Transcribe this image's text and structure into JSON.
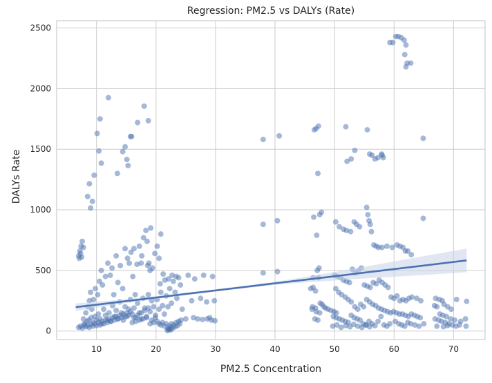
{
  "chart_data": {
    "type": "scatter",
    "title": "Regression: PM2.5 vs DALYs (Rate)",
    "xlabel": "PM2.5 Concentration",
    "ylabel": "DALYs Rate",
    "xlim": [
      3.3,
      75.3
    ],
    "ylim": [
      -70,
      2560
    ],
    "xticks": [
      10,
      20,
      30,
      40,
      50,
      60,
      70
    ],
    "yticks": [
      0,
      500,
      1000,
      1500,
      2000,
      2500
    ],
    "grid": true,
    "colors": {
      "points": "#4c72b0",
      "line": "#4c72b0",
      "band": "#c6d3e8",
      "grid": "#cccccc",
      "frame": "#cccccc"
    },
    "regression": {
      "x": [
        6.5,
        10,
        15,
        20,
        25,
        30,
        35,
        40,
        45,
        50,
        55,
        60,
        65,
        72.2
      ],
      "y": [
        197,
        217,
        247,
        276,
        306,
        335,
        364,
        394,
        423,
        452,
        482,
        511,
        540,
        583
      ],
      "ci_upper": [
        228,
        240,
        262,
        288,
        316,
        345,
        375,
        407,
        445,
        487,
        530,
        574,
        618,
        680
      ],
      "ci_lower": [
        166,
        194,
        232,
        264,
        296,
        325,
        353,
        381,
        401,
        417,
        434,
        448,
        462,
        486
      ]
    },
    "points": [
      [
        7.0,
        620
      ],
      [
        7.2,
        660
      ],
      [
        7.4,
        700
      ],
      [
        7.6,
        740
      ],
      [
        7.3,
        640
      ],
      [
        7.5,
        610
      ],
      [
        7.1,
        600
      ],
      [
        7.8,
        690
      ],
      [
        8.5,
        1110
      ],
      [
        8.8,
        1215
      ],
      [
        9.0,
        1015
      ],
      [
        9.3,
        1070
      ],
      [
        9.6,
        1285
      ],
      [
        10.1,
        1630
      ],
      [
        10.4,
        1485
      ],
      [
        10.6,
        1750
      ],
      [
        10.8,
        1385
      ],
      [
        12.0,
        1925
      ],
      [
        13.5,
        1300
      ],
      [
        14.4,
        1480
      ],
      [
        14.8,
        1520
      ],
      [
        15.1,
        1415
      ],
      [
        15.3,
        1365
      ],
      [
        15.7,
        1605
      ],
      [
        15.9,
        1605
      ],
      [
        16.9,
        1720
      ],
      [
        18.0,
        1855
      ],
      [
        18.7,
        1735
      ],
      [
        7.8,
        100
      ],
      [
        8.2,
        150
      ],
      [
        8.5,
        200
      ],
      [
        8.8,
        250
      ],
      [
        9.0,
        320
      ],
      [
        9.2,
        180
      ],
      [
        9.5,
        260
      ],
      [
        9.8,
        350
      ],
      [
        10.2,
        300
      ],
      [
        10.5,
        410
      ],
      [
        10.8,
        500
      ],
      [
        11.0,
        380
      ],
      [
        11.5,
        450
      ],
      [
        11.9,
        560
      ],
      [
        12.3,
        460
      ],
      [
        12.6,
        520
      ],
      [
        12.9,
        300
      ],
      [
        13.3,
        620
      ],
      [
        13.6,
        400
      ],
      [
        14.0,
        540
      ],
      [
        14.4,
        350
      ],
      [
        14.8,
        680
      ],
      [
        15.2,
        600
      ],
      [
        15.5,
        560
      ],
      [
        15.8,
        650
      ],
      [
        16.1,
        450
      ],
      [
        16.5,
        300
      ],
      [
        16.8,
        550
      ],
      [
        17.2,
        700
      ],
      [
        17.6,
        620
      ],
      [
        17.9,
        770
      ],
      [
        18.3,
        830
      ],
      [
        18.5,
        740
      ],
      [
        18.8,
        560
      ],
      [
        19.1,
        850
      ],
      [
        19.4,
        520
      ],
      [
        19.8,
        640
      ],
      [
        20.2,
        700
      ],
      [
        20.5,
        600
      ],
      [
        20.8,
        800
      ],
      [
        21.2,
        470
      ],
      [
        18.6,
        540
      ],
      [
        19.0,
        500
      ],
      [
        17.5,
        560
      ],
      [
        16.3,
        680
      ],
      [
        8.0,
        60
      ],
      [
        8.4,
        80
      ],
      [
        8.7,
        90
      ],
      [
        9.1,
        110
      ],
      [
        9.4,
        70
      ],
      [
        9.7,
        120
      ],
      [
        10.0,
        90
      ],
      [
        10.3,
        140
      ],
      [
        10.6,
        100
      ],
      [
        10.9,
        60
      ],
      [
        11.2,
        180
      ],
      [
        11.5,
        130
      ],
      [
        11.8,
        90
      ],
      [
        12.1,
        150
      ],
      [
        12.4,
        80
      ],
      [
        12.7,
        210
      ],
      [
        13.0,
        120
      ],
      [
        13.3,
        170
      ],
      [
        13.6,
        100
      ],
      [
        13.9,
        240
      ],
      [
        14.2,
        150
      ],
      [
        14.5,
        90
      ],
      [
        14.8,
        200
      ],
      [
        15.1,
        120
      ],
      [
        15.4,
        180
      ],
      [
        15.7,
        260
      ],
      [
        16.0,
        140
      ],
      [
        16.3,
        190
      ],
      [
        16.6,
        110
      ],
      [
        16.9,
        230
      ],
      [
        17.2,
        150
      ],
      [
        17.5,
        100
      ],
      [
        17.8,
        270
      ],
      [
        18.1,
        190
      ],
      [
        18.4,
        120
      ],
      [
        18.7,
        300
      ],
      [
        19.0,
        160
      ],
      [
        19.3,
        250
      ],
      [
        19.6,
        200
      ],
      [
        19.9,
        130
      ],
      [
        20.2,
        260
      ],
      [
        20.5,
        180
      ],
      [
        20.8,
        320
      ],
      [
        21.1,
        210
      ],
      [
        21.4,
        140
      ],
      [
        21.7,
        290
      ],
      [
        22.0,
        200
      ],
      [
        22.3,
        350
      ],
      [
        22.6,
        230
      ],
      [
        22.9,
        410
      ],
      [
        23.2,
        320
      ],
      [
        23.5,
        270
      ],
      [
        23.8,
        440
      ],
      [
        24.1,
        380
      ],
      [
        24.4,
        180
      ],
      [
        22.1,
        430
      ],
      [
        22.7,
        460
      ],
      [
        23.4,
        450
      ],
      [
        21.5,
        420
      ],
      [
        20.7,
        390
      ],
      [
        7.0,
        30
      ],
      [
        7.3,
        40
      ],
      [
        7.6,
        25
      ],
      [
        7.9,
        50
      ],
      [
        8.2,
        35
      ],
      [
        8.5,
        45
      ],
      [
        8.8,
        30
      ],
      [
        9.1,
        55
      ],
      [
        9.4,
        40
      ],
      [
        9.7,
        60
      ],
      [
        10.0,
        45
      ],
      [
        10.3,
        70
      ],
      [
        10.6,
        50
      ],
      [
        10.9,
        80
      ],
      [
        11.2,
        60
      ],
      [
        11.5,
        90
      ],
      [
        11.8,
        70
      ],
      [
        12.1,
        100
      ],
      [
        12.4,
        80
      ],
      [
        12.7,
        110
      ],
      [
        13.0,
        90
      ],
      [
        13.3,
        120
      ],
      [
        13.6,
        100
      ],
      [
        13.9,
        130
      ],
      [
        14.2,
        110
      ],
      [
        14.5,
        140
      ],
      [
        14.8,
        120
      ],
      [
        15.1,
        150
      ],
      [
        15.4,
        130
      ],
      [
        15.7,
        160
      ],
      [
        16.0,
        70
      ],
      [
        16.3,
        110
      ],
      [
        16.6,
        80
      ],
      [
        16.9,
        130
      ],
      [
        17.2,
        90
      ],
      [
        17.5,
        150
      ],
      [
        17.8,
        100
      ],
      [
        18.1,
        170
      ],
      [
        18.4,
        110
      ],
      [
        18.7,
        190
      ],
      [
        19.0,
        60
      ],
      [
        19.3,
        90
      ],
      [
        19.6,
        70
      ],
      [
        19.9,
        110
      ],
      [
        20.2,
        80
      ],
      [
        20.5,
        60
      ],
      [
        20.8,
        50
      ],
      [
        21.1,
        70
      ],
      [
        21.4,
        40
      ],
      [
        21.7,
        60
      ],
      [
        22.0,
        20
      ],
      [
        22.2,
        40
      ],
      [
        22.4,
        30
      ],
      [
        22.6,
        60
      ],
      [
        22.8,
        25
      ],
      [
        23.0,
        50
      ],
      [
        23.2,
        35
      ],
      [
        23.4,
        70
      ],
      [
        23.6,
        45
      ],
      [
        23.8,
        80
      ],
      [
        24.0,
        60
      ],
      [
        24.2,
        90
      ],
      [
        22.1,
        10
      ],
      [
        22.3,
        15
      ],
      [
        21.9,
        5
      ],
      [
        22.5,
        10
      ],
      [
        25.4,
        460
      ],
      [
        26.0,
        250
      ],
      [
        26.5,
        430
      ],
      [
        27.0,
        100
      ],
      [
        27.5,
        270
      ],
      [
        28.0,
        460
      ],
      [
        28.5,
        240
      ],
      [
        29.0,
        110
      ],
      [
        29.5,
        450
      ],
      [
        29.8,
        250
      ],
      [
        25.0,
        100
      ],
      [
        26.3,
        110
      ],
      [
        27.8,
        95
      ],
      [
        28.6,
        100
      ],
      [
        29.3,
        90
      ],
      [
        29.9,
        85
      ],
      [
        38.0,
        1580
      ],
      [
        40.7,
        1610
      ],
      [
        38.0,
        880
      ],
      [
        40.4,
        910
      ],
      [
        38.0,
        480
      ],
      [
        40.4,
        490
      ],
      [
        46.6,
        1660
      ],
      [
        46.9,
        1670
      ],
      [
        47.3,
        1690
      ],
      [
        47.2,
        1300
      ],
      [
        47.5,
        960
      ],
      [
        47.8,
        980
      ],
      [
        46.5,
        940
      ],
      [
        47.0,
        790
      ],
      [
        47.4,
        520
      ],
      [
        47.1,
        500
      ],
      [
        47.3,
        440
      ],
      [
        46.4,
        360
      ],
      [
        46.8,
        330
      ],
      [
        47.6,
        230
      ],
      [
        46.2,
        180
      ],
      [
        46.9,
        160
      ],
      [
        47.5,
        150
      ],
      [
        46.7,
        100
      ],
      [
        47.2,
        90
      ],
      [
        46.4,
        440
      ],
      [
        50.2,
        900
      ],
      [
        50.8,
        860
      ],
      [
        51.5,
        840
      ],
      [
        52.0,
        830
      ],
      [
        52.7,
        820
      ],
      [
        53.3,
        900
      ],
      [
        53.7,
        880
      ],
      [
        54.2,
        860
      ],
      [
        51.9,
        1685
      ],
      [
        52.1,
        1400
      ],
      [
        52.8,
        1420
      ],
      [
        53.4,
        1490
      ],
      [
        55.5,
        1660
      ],
      [
        55.9,
        1460
      ],
      [
        56.3,
        1450
      ],
      [
        56.8,
        1420
      ],
      [
        57.3,
        1430
      ],
      [
        57.9,
        1460
      ],
      [
        58.0,
        1450
      ],
      [
        58.2,
        1430
      ],
      [
        59.3,
        2380
      ],
      [
        59.8,
        2380
      ],
      [
        60.3,
        2430
      ],
      [
        60.7,
        2430
      ],
      [
        61.2,
        2420
      ],
      [
        61.7,
        2400
      ],
      [
        62.0,
        2360
      ],
      [
        61.8,
        2280
      ],
      [
        62.2,
        2210
      ],
      [
        62.0,
        2180
      ],
      [
        62.8,
        2210
      ],
      [
        64.9,
        1590
      ],
      [
        64.9,
        930
      ],
      [
        58.0,
        690
      ],
      [
        58.8,
        700
      ],
      [
        59.7,
        690
      ],
      [
        60.5,
        710
      ],
      [
        61.0,
        700
      ],
      [
        61.5,
        690
      ],
      [
        61.9,
        660
      ],
      [
        62.3,
        660
      ],
      [
        62.9,
        630
      ],
      [
        55.4,
        1020
      ],
      [
        55.6,
        960
      ],
      [
        55.8,
        910
      ],
      [
        56.0,
        880
      ],
      [
        56.2,
        820
      ],
      [
        56.6,
        710
      ],
      [
        57.0,
        700
      ],
      [
        57.4,
        690
      ],
      [
        50.0,
        460
      ],
      [
        50.5,
        450
      ],
      [
        51.0,
        440
      ],
      [
        51.5,
        420
      ],
      [
        52.0,
        410
      ],
      [
        52.5,
        400
      ],
      [
        53.0,
        510
      ],
      [
        53.5,
        480
      ],
      [
        54.0,
        500
      ],
      [
        54.5,
        520
      ],
      [
        55.0,
        380
      ],
      [
        55.5,
        370
      ],
      [
        56.0,
        360
      ],
      [
        56.5,
        400
      ],
      [
        57.0,
        390
      ],
      [
        57.5,
        420
      ],
      [
        58.0,
        400
      ],
      [
        58.5,
        380
      ],
      [
        59.0,
        360
      ],
      [
        59.5,
        280
      ],
      [
        60.0,
        270
      ],
      [
        60.5,
        290
      ],
      [
        61.0,
        250
      ],
      [
        61.5,
        260
      ],
      [
        62.0,
        250
      ],
      [
        62.5,
        270
      ],
      [
        63.0,
        280
      ],
      [
        63.8,
        270
      ],
      [
        64.5,
        250
      ],
      [
        50.2,
        350
      ],
      [
        50.7,
        320
      ],
      [
        51.2,
        300
      ],
      [
        51.8,
        280
      ],
      [
        52.3,
        260
      ],
      [
        52.8,
        240
      ],
      [
        53.4,
        200
      ],
      [
        53.9,
        180
      ],
      [
        54.4,
        220
      ],
      [
        54.9,
        200
      ],
      [
        55.4,
        260
      ],
      [
        55.9,
        240
      ],
      [
        56.4,
        220
      ],
      [
        56.9,
        210
      ],
      [
        57.4,
        190
      ],
      [
        57.9,
        180
      ],
      [
        58.4,
        170
      ],
      [
        58.9,
        160
      ],
      [
        59.4,
        150
      ],
      [
        59.9,
        160
      ],
      [
        60.4,
        150
      ],
      [
        60.9,
        140
      ],
      [
        61.4,
        140
      ],
      [
        61.9,
        130
      ],
      [
        62.4,
        120
      ],
      [
        62.9,
        140
      ],
      [
        63.4,
        130
      ],
      [
        63.9,
        120
      ],
      [
        64.4,
        110
      ],
      [
        49.8,
        120
      ],
      [
        50.3,
        110
      ],
      [
        50.8,
        100
      ],
      [
        51.3,
        90
      ],
      [
        51.8,
        80
      ],
      [
        52.3,
        70
      ],
      [
        52.8,
        130
      ],
      [
        53.3,
        110
      ],
      [
        53.8,
        100
      ],
      [
        54.3,
        90
      ],
      [
        54.8,
        60
      ],
      [
        55.3,
        50
      ],
      [
        55.8,
        80
      ],
      [
        56.3,
        60
      ],
      [
        56.8,
        45
      ],
      [
        57.3,
        80
      ],
      [
        57.8,
        120
      ],
      [
        58.3,
        50
      ],
      [
        58.8,
        40
      ],
      [
        59.3,
        60
      ],
      [
        60.2,
        80
      ],
      [
        60.8,
        60
      ],
      [
        61.3,
        50
      ],
      [
        61.8,
        40
      ],
      [
        62.3,
        70
      ],
      [
        62.8,
        60
      ],
      [
        63.5,
        50
      ],
      [
        64.2,
        40
      ],
      [
        65.0,
        60
      ],
      [
        49.7,
        40
      ],
      [
        50.4,
        50
      ],
      [
        51.1,
        30
      ],
      [
        51.9,
        45
      ],
      [
        52.6,
        35
      ],
      [
        53.2,
        55
      ],
      [
        53.9,
        40
      ],
      [
        54.6,
        30
      ],
      [
        55.3,
        50
      ],
      [
        55.9,
        35
      ],
      [
        48.5,
        190
      ],
      [
        48.9,
        180
      ],
      [
        49.4,
        170
      ],
      [
        49.9,
        160
      ],
      [
        50.3,
        150
      ],
      [
        46.0,
        350
      ],
      [
        46.3,
        200
      ],
      [
        46.8,
        190
      ],
      [
        47.9,
        220
      ],
      [
        48.2,
        200
      ],
      [
        67.0,
        270
      ],
      [
        67.6,
        260
      ],
      [
        68.1,
        250
      ],
      [
        68.4,
        220
      ],
      [
        69.0,
        200
      ],
      [
        69.6,
        180
      ],
      [
        70.5,
        260
      ],
      [
        72.2,
        245
      ],
      [
        66.8,
        210
      ],
      [
        67.2,
        200
      ],
      [
        67.7,
        140
      ],
      [
        68.2,
        130
      ],
      [
        68.8,
        120
      ],
      [
        69.5,
        100
      ],
      [
        70.2,
        90
      ],
      [
        71.2,
        80
      ],
      [
        72.0,
        100
      ],
      [
        66.9,
        100
      ],
      [
        67.5,
        90
      ],
      [
        68.0,
        80
      ],
      [
        68.6,
        70
      ],
      [
        69.2,
        60
      ],
      [
        69.8,
        50
      ],
      [
        70.4,
        40
      ],
      [
        71.0,
        50
      ],
      [
        72.1,
        40
      ],
      [
        67.2,
        40
      ],
      [
        68.3,
        35
      ],
      [
        69.0,
        45
      ]
    ]
  }
}
